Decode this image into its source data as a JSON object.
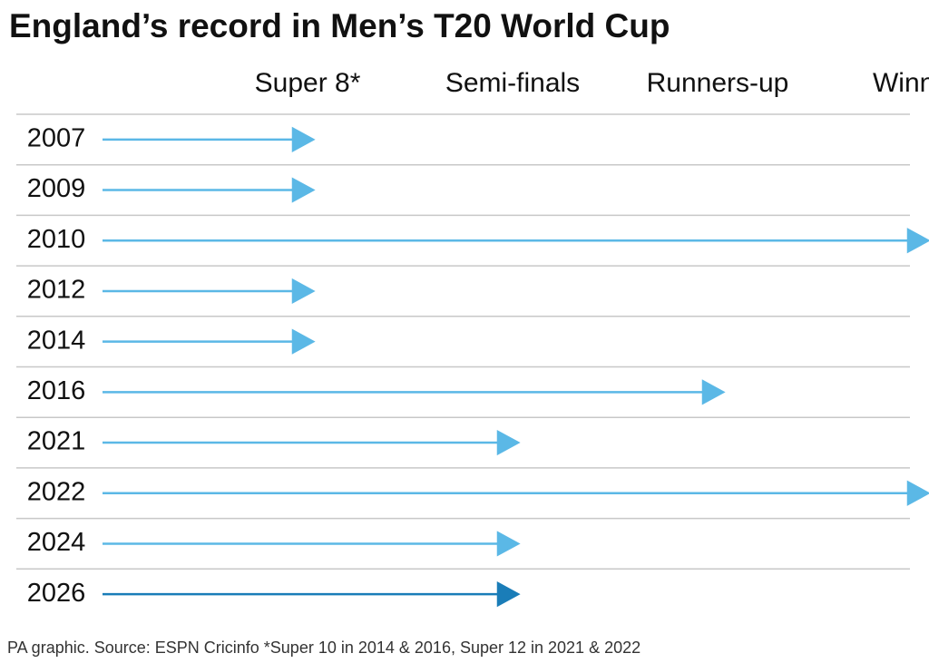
{
  "chart_data": {
    "type": "arrow",
    "title": "England’s record in Men’s T20 World Cup",
    "footnote": "PA graphic. Source: ESPN Cricinfo *Super 10 in 2014 & 2016, Super 12 in 2021 & 2022",
    "categories": [
      "2007",
      "2009",
      "2010",
      "2012",
      "2014",
      "2016",
      "2021",
      "2022",
      "2024",
      "2026"
    ],
    "values": [
      1,
      1,
      4,
      1,
      1,
      3,
      2,
      4,
      2,
      2
    ],
    "colors": [
      "#5bb8e6",
      "#5bb8e6",
      "#5bb8e6",
      "#5bb8e6",
      "#5bb8e6",
      "#5bb8e6",
      "#5bb8e6",
      "#5bb8e6",
      "#5bb8e6",
      "#1a7db8"
    ],
    "xlim": [
      0,
      4
    ],
    "xticks": [
      {
        "value": 1,
        "label": "Super 8*"
      },
      {
        "value": 2,
        "label": "Semi-finals"
      },
      {
        "value": 3,
        "label": "Runners-up"
      },
      {
        "value": 4,
        "label": "Winners"
      }
    ]
  }
}
